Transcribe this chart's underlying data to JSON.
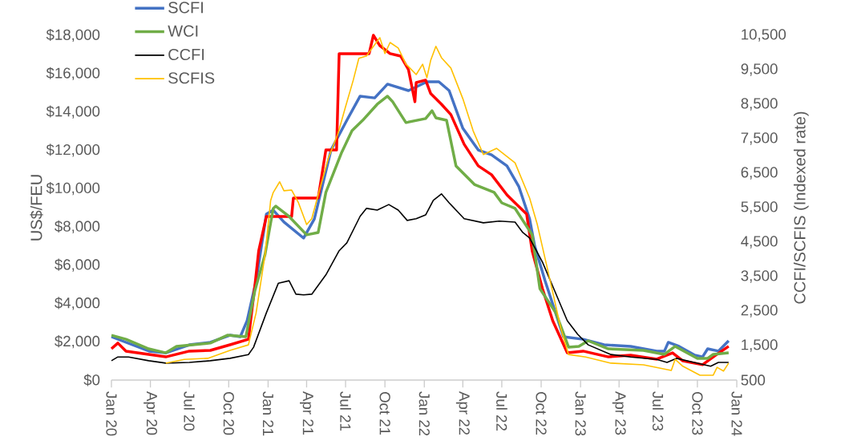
{
  "chart_data": {
    "type": "line",
    "ylabel": "US$/FEU",
    "y2label": "CCFI/SCFIS  (Indexed rate)",
    "legend": "top left",
    "xlim": [
      "2020-01-01",
      "2024-01-01"
    ],
    "xticks": [
      {
        "value": "2020-01-01",
        "label": "Jan 20"
      },
      {
        "value": "2020-04-01",
        "label": "Apr 20"
      },
      {
        "value": "2020-07-01",
        "label": "Jul 20"
      },
      {
        "value": "2020-10-01",
        "label": "Oct 20"
      },
      {
        "value": "2021-01-01",
        "label": "Jan 21"
      },
      {
        "value": "2021-04-01",
        "label": "Apr 21"
      },
      {
        "value": "2021-07-01",
        "label": "Jul 21"
      },
      {
        "value": "2021-10-01",
        "label": "Oct 21"
      },
      {
        "value": "2022-01-01",
        "label": "Jan 22"
      },
      {
        "value": "2022-04-01",
        "label": "Apr 22"
      },
      {
        "value": "2022-07-01",
        "label": "Jul 22"
      },
      {
        "value": "2022-10-01",
        "label": "Oct 22"
      },
      {
        "value": "2023-01-01",
        "label": "Jan 23"
      },
      {
        "value": "2023-04-01",
        "label": "Apr 23"
      },
      {
        "value": "2023-07-01",
        "label": "Jul 23"
      },
      {
        "value": "2023-10-01",
        "label": "Oct 23"
      },
      {
        "value": "2024-01-01",
        "label": "Jan 24"
      }
    ],
    "ylim": [
      0,
      18000
    ],
    "yticks": [
      {
        "value": 0,
        "label": "$0"
      },
      {
        "value": 2000,
        "label": "$2,000"
      },
      {
        "value": 4000,
        "label": "$4,000"
      },
      {
        "value": 6000,
        "label": "$6,000"
      },
      {
        "value": 8000,
        "label": "$8,000"
      },
      {
        "value": 10000,
        "label": "$10,000"
      },
      {
        "value": 12000,
        "label": "$12,000"
      },
      {
        "value": 14000,
        "label": "$14,000"
      },
      {
        "value": 16000,
        "label": "$16,000"
      },
      {
        "value": 18000,
        "label": "$18,000"
      }
    ],
    "y2lim": [
      500,
      10500
    ],
    "y2ticks": [
      500,
      {
        "value": 1500,
        "label": "1,500"
      },
      {
        "value": 2500,
        "label": "2,500"
      },
      {
        "value": 3500,
        "label": "3,500"
      },
      {
        "value": 4500,
        "label": "4,500"
      },
      {
        "value": 5500,
        "label": "5,500"
      },
      {
        "value": 6500,
        "label": "6,500"
      },
      {
        "value": 7500,
        "label": "7,500"
      },
      {
        "value": 8500,
        "label": "8,500"
      },
      {
        "value": 9500,
        "label": "9,500"
      },
      {
        "value": 10500,
        "label": "10,500"
      }
    ],
    "series": [
      {
        "name": "SCFI",
        "color": "#4472c4",
        "x": [
          "2020-01-01",
          "2020-03-29",
          "2020-05-07",
          "2020-07-01",
          "2020-08-19",
          "2020-10-04",
          "2020-10-28",
          "2020-11-13",
          "2020-12-04",
          "2020-12-28",
          "2021-01-13",
          "2021-02-07",
          "2021-03-25",
          "2021-04-19",
          "2021-05-28",
          "2021-07-04",
          "2021-08-04",
          "2021-09-07",
          "2021-10-07",
          "2021-11-25",
          "2022-01-07",
          "2022-02-04",
          "2022-02-28",
          "2022-04-01",
          "2022-05-07",
          "2022-06-07",
          "2022-07-13",
          "2022-08-10",
          "2022-09-04",
          "2022-09-16",
          "2022-10-10",
          "2022-11-22",
          "2023-01-07",
          "2023-02-25",
          "2023-04-28",
          "2023-06-28",
          "2023-07-16",
          "2023-07-25",
          "2023-08-19",
          "2023-09-25",
          "2023-10-13",
          "2023-10-25",
          "2023-11-19",
          "2023-12-13"
        ],
        "values": [
          2260,
          1510,
          1420,
          1840,
          1970,
          2340,
          2260,
          3100,
          5190,
          8660,
          8870,
          8250,
          7410,
          8410,
          12010,
          13560,
          14820,
          14730,
          15450,
          15110,
          15570,
          15570,
          15110,
          13140,
          12010,
          11760,
          11180,
          10090,
          8410,
          6990,
          5190,
          2260,
          2130,
          1840,
          1760,
          1510,
          1510,
          1970,
          1760,
          1300,
          1210,
          1630,
          1510,
          2050
        ]
      },
      {
        "color": "#ff0000",
        "x": [
          "2020-01-01",
          "2020-01-16",
          "2020-02-04",
          "2020-03-28",
          "2020-05-07",
          "2020-07-01",
          "2020-08-19",
          "2020-10-04",
          "2020-11-16",
          "2020-12-01",
          "2020-12-10",
          "2020-12-28",
          "2021-02-25",
          "2021-03-01",
          "2021-04-28",
          "2021-05-16",
          "2021-06-10",
          "2021-06-16",
          "2021-08-25",
          "2021-09-04",
          "2021-09-19",
          "2021-10-13",
          "2021-11-07",
          "2021-11-25",
          "2021-12-10",
          "2021-12-13",
          "2022-01-04",
          "2022-01-16",
          "2022-02-10",
          "2022-03-04",
          "2022-04-04",
          "2022-05-07",
          "2022-06-07",
          "2022-07-13",
          "2022-08-01",
          "2022-08-28",
          "2022-09-10",
          "2022-10-04",
          "2022-10-28",
          "2022-12-01",
          "2023-01-07",
          "2023-03-07",
          "2023-04-28",
          "2023-06-28",
          "2023-08-04",
          "2023-08-28",
          "2023-10-13",
          "2023-11-13",
          "2023-12-13"
        ],
        "values": [
          1630,
          1930,
          1510,
          1340,
          1210,
          1510,
          1550,
          1840,
          2130,
          4900,
          6740,
          8540,
          8540,
          9500,
          9500,
          12010,
          12010,
          17040,
          17040,
          18000,
          17460,
          17040,
          16910,
          16200,
          14530,
          15530,
          15660,
          14950,
          14400,
          13860,
          12310,
          11180,
          10720,
          9670,
          9250,
          8660,
          6740,
          4770,
          3100,
          1420,
          1510,
          1210,
          1300,
          1090,
          1420,
          1000,
          800,
          1300,
          1760
        ]
      },
      {
        "name": "WCI",
        "color": "#70ad47",
        "x": [
          "2020-01-01",
          "2020-02-04",
          "2020-03-28",
          "2020-05-07",
          "2020-06-01",
          "2020-08-19",
          "2020-09-28",
          "2020-11-10",
          "2020-12-01",
          "2020-12-25",
          "2021-01-13",
          "2021-01-19",
          "2021-02-19",
          "2021-04-01",
          "2021-04-28",
          "2021-05-16",
          "2021-06-22",
          "2021-07-16",
          "2021-08-10",
          "2021-09-13",
          "2021-10-07",
          "2021-10-19",
          "2021-11-07",
          "2021-11-19",
          "2022-01-04",
          "2022-01-19",
          "2022-01-28",
          "2022-02-22",
          "2022-03-16",
          "2022-04-28",
          "2022-06-13",
          "2022-07-01",
          "2022-08-01",
          "2022-09-10",
          "2022-09-28",
          "2022-11-04",
          "2022-12-04",
          "2022-12-28",
          "2023-01-19",
          "2023-03-07",
          "2023-05-28",
          "2023-07-16",
          "2023-08-10",
          "2023-10-01",
          "2023-10-25",
          "2023-11-07",
          "2023-12-13"
        ],
        "values": [
          2340,
          2130,
          1630,
          1420,
          1760,
          1930,
          2340,
          2260,
          4650,
          6570,
          8960,
          9080,
          8540,
          7580,
          7700,
          9800,
          11890,
          13020,
          13560,
          14400,
          14820,
          14530,
          13860,
          13440,
          13650,
          14060,
          13690,
          13560,
          11180,
          10210,
          9800,
          9250,
          8960,
          7580,
          4770,
          3520,
          1720,
          1760,
          2050,
          1630,
          1550,
          1340,
          1760,
          1130,
          1130,
          1340,
          1420
        ]
      },
      {
        "name": "CCFI",
        "color": "#000000",
        "axis": "y2",
        "x": [
          "2020-01-01",
          "2020-01-16",
          "2020-02-10",
          "2020-03-28",
          "2020-05-07",
          "2020-07-01",
          "2020-08-19",
          "2020-10-04",
          "2020-11-16",
          "2020-11-28",
          "2020-12-28",
          "2021-01-25",
          "2021-02-19",
          "2021-03-07",
          "2021-03-25",
          "2021-04-13",
          "2021-05-16",
          "2021-06-16",
          "2021-07-04",
          "2021-08-04",
          "2021-08-19",
          "2021-09-13",
          "2021-10-10",
          "2021-11-01",
          "2021-11-22",
          "2021-12-13",
          "2022-01-04",
          "2022-01-22",
          "2022-02-10",
          "2022-02-28",
          "2022-04-04",
          "2022-05-19",
          "2022-06-25",
          "2022-08-01",
          "2022-08-19",
          "2022-09-04",
          "2022-10-04",
          "2022-10-28",
          "2022-12-01",
          "2022-12-25",
          "2023-01-19",
          "2023-03-13",
          "2023-04-28",
          "2023-06-28",
          "2023-07-22",
          "2023-08-13",
          "2023-10-01",
          "2023-11-01",
          "2023-11-19",
          "2023-12-13"
        ],
        "values": [
          1060,
          1170,
          1170,
          1060,
          990,
          1010,
          1060,
          1130,
          1240,
          1450,
          2450,
          3310,
          3380,
          2990,
          2970,
          2990,
          3550,
          4250,
          4480,
          5250,
          5480,
          5430,
          5590,
          5430,
          5130,
          5180,
          5290,
          5710,
          5900,
          5640,
          5180,
          5060,
          5110,
          5080,
          4780,
          4620,
          3920,
          3220,
          2220,
          1830,
          1520,
          1240,
          1170,
          1100,
          1010,
          1130,
          990,
          900,
          1010,
          1010
        ]
      },
      {
        "name": "SCFIS",
        "color": "#ffc000",
        "axis": "y2",
        "x": [
          "2020-05-07",
          "2020-06-19",
          "2020-08-13",
          "2020-10-04",
          "2020-11-16",
          "2020-12-04",
          "2020-12-25",
          "2021-01-07",
          "2021-01-13",
          "2021-01-28",
          "2021-02-07",
          "2021-02-25",
          "2021-03-13",
          "2021-04-01",
          "2021-04-13",
          "2021-04-28",
          "2021-05-22",
          "2021-06-13",
          "2021-07-01",
          "2021-07-19",
          "2021-08-01",
          "2021-08-19",
          "2021-08-28",
          "2021-09-19",
          "2021-10-01",
          "2021-10-13",
          "2021-11-01",
          "2021-11-19",
          "2021-11-25",
          "2021-12-13",
          "2021-12-28",
          "2022-01-07",
          "2022-01-16",
          "2022-01-28",
          "2022-02-10",
          "2022-03-04",
          "2022-04-01",
          "2022-04-25",
          "2022-05-19",
          "2022-06-19",
          "2022-08-01",
          "2022-09-04",
          "2022-09-22",
          "2022-10-22",
          "2022-11-16",
          "2022-12-04",
          "2023-01-13",
          "2023-03-13",
          "2023-05-28",
          "2023-08-01",
          "2023-08-10",
          "2023-08-28",
          "2023-10-07",
          "2023-11-07",
          "2023-11-16",
          "2023-12-01",
          "2023-12-13"
        ],
        "values": [
          990,
          1100,
          1130,
          1360,
          1520,
          2450,
          4150,
          5710,
          5940,
          6250,
          5990,
          6010,
          5640,
          5010,
          5180,
          5870,
          6940,
          7640,
          8430,
          9200,
          9830,
          9900,
          10060,
          10430,
          9970,
          10290,
          10130,
          9660,
          9590,
          9360,
          9660,
          9270,
          9780,
          10180,
          9850,
          9550,
          8660,
          7730,
          7040,
          7220,
          6800,
          5780,
          5010,
          3380,
          1990,
          1240,
          1170,
          990,
          940,
          780,
          1100,
          900,
          640,
          640,
          870,
          760,
          990
        ]
      }
    ]
  }
}
